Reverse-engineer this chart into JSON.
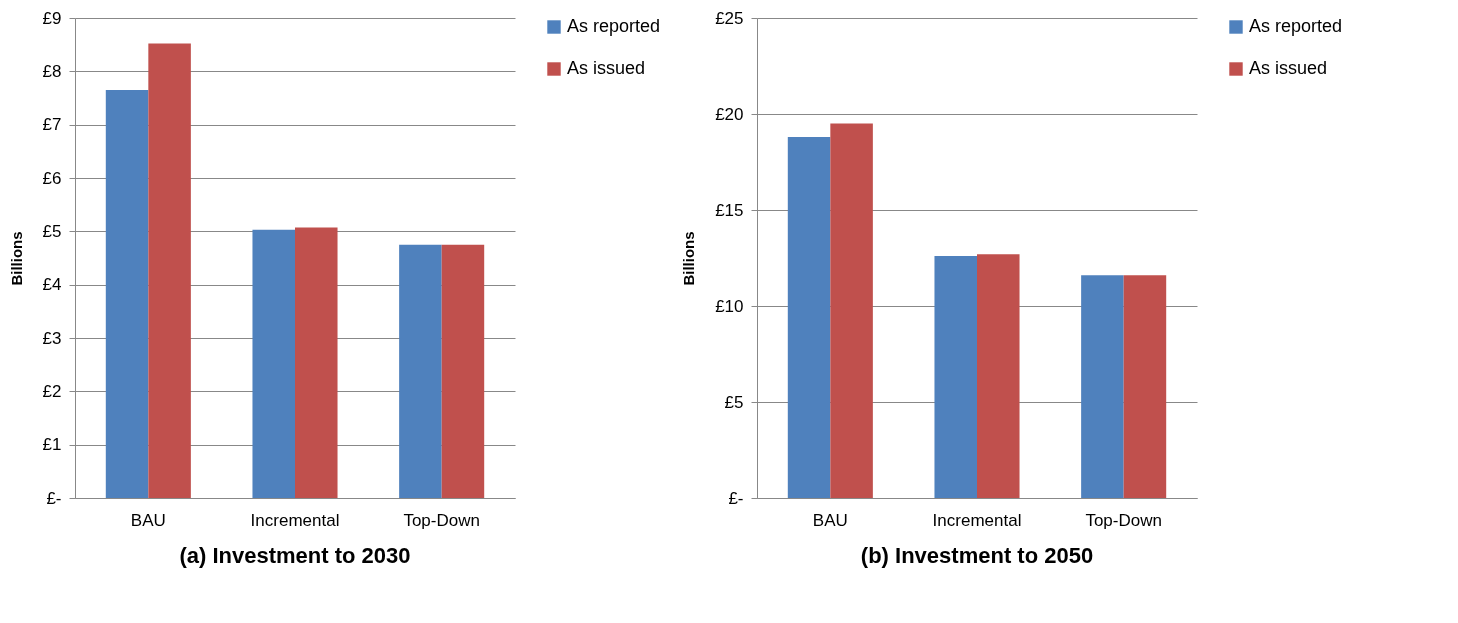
{
  "chart_data": [
    {
      "type": "bar",
      "title": "(a)  Investment to 2030",
      "ylabel": "Billions",
      "categories": [
        "BAU",
        "Incremental",
        "Top-Down"
      ],
      "series": [
        {
          "name": "As reported",
          "color": "#4f81bd",
          "values": [
            7.65,
            5.03,
            4.75
          ]
        },
        {
          "name": "As issued",
          "color": "#c0504d",
          "values": [
            8.52,
            5.07,
            4.75
          ]
        }
      ],
      "ylim": [
        0,
        9
      ],
      "yticks": [
        {
          "value": 0,
          "label": "£-"
        },
        {
          "value": 1,
          "label": "£1"
        },
        {
          "value": 2,
          "label": "£2"
        },
        {
          "value": 3,
          "label": "£3"
        },
        {
          "value": 4,
          "label": "£4"
        },
        {
          "value": 5,
          "label": "£5"
        },
        {
          "value": 6,
          "label": "£6"
        },
        {
          "value": 7,
          "label": "£7"
        },
        {
          "value": 8,
          "label": "£8"
        },
        {
          "value": 9,
          "label": "£9"
        }
      ],
      "grid": "y",
      "legend": "right"
    },
    {
      "type": "bar",
      "title": "(b)  Investment to 2050",
      "ylabel": "Billions",
      "categories": [
        "BAU",
        "Incremental",
        "Top-Down"
      ],
      "series": [
        {
          "name": "As reported",
          "color": "#4f81bd",
          "values": [
            18.8,
            12.6,
            11.6
          ]
        },
        {
          "name": "As issued",
          "color": "#c0504d",
          "values": [
            19.5,
            12.7,
            11.6
          ]
        }
      ],
      "ylim": [
        0,
        25
      ],
      "yticks": [
        {
          "value": 0,
          "label": "£-"
        },
        {
          "value": 5,
          "label": "£5"
        },
        {
          "value": 10,
          "label": "£10"
        },
        {
          "value": 15,
          "label": "£15"
        },
        {
          "value": 20,
          "label": "£20"
        },
        {
          "value": 25,
          "label": "£25"
        }
      ],
      "grid": "y",
      "legend": "right"
    }
  ]
}
